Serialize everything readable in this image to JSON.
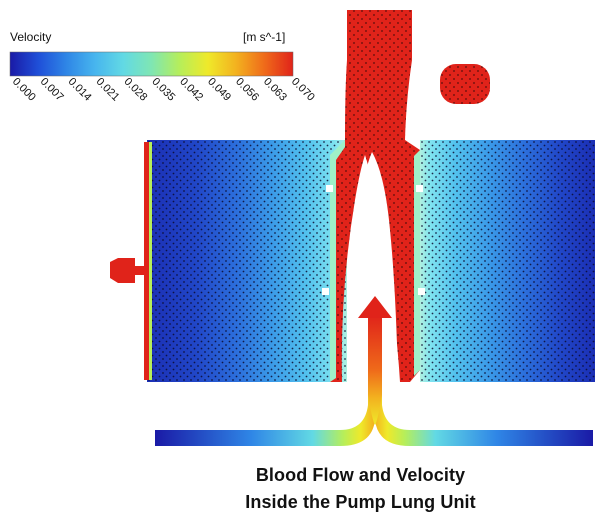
{
  "legend": {
    "title": "Velocity",
    "unit": "[m s^-1]",
    "ticks": [
      "0.000",
      "0.007",
      "0.014",
      "0.021",
      "0.028",
      "0.035",
      "0.042",
      "0.049",
      "0.056",
      "0.063",
      "0.070"
    ],
    "colors": [
      "#1a1aa6",
      "#1f4fd8",
      "#2f86e6",
      "#47b5ee",
      "#62d9e4",
      "#7fe6b3",
      "#b6ee5a",
      "#efe92a",
      "#f3b11f",
      "#ef6a1a",
      "#e0231a"
    ]
  },
  "caption": {
    "line1": "Blood Flow and Velocity",
    "line2": "Inside the Pump Lung Unit"
  },
  "colors": {
    "high": "#e0231a",
    "low": "#1a2fb0",
    "mid": "#55c6ee"
  }
}
